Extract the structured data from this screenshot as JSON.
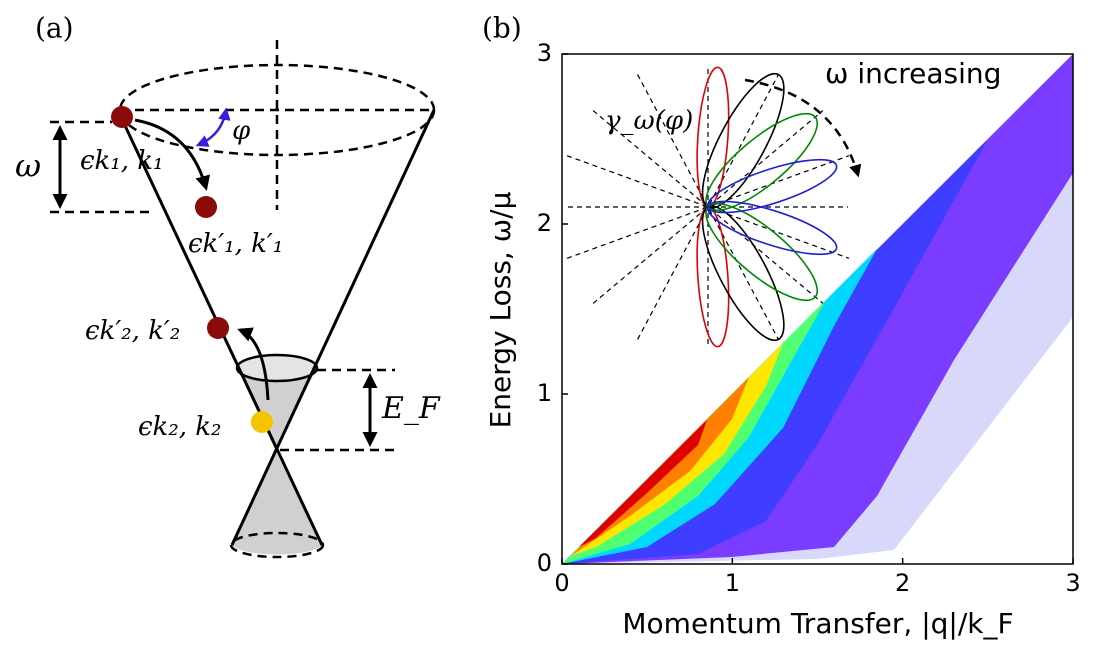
{
  "panel_a": {
    "label": "(a)",
    "omega": "ω",
    "phi": "φ",
    "e_k1": "ϵk₁, k₁",
    "e_k1p": "ϵk′₁, k′₁",
    "e_k2p": "ϵk′₂, k′₂",
    "e_k2": "ϵk₂, k₂",
    "fermi_energy": "E_F"
  },
  "chart_data": {
    "type": "contour",
    "panel_label": "(b)",
    "x_label": "Momentum Transfer, |q|/k_F",
    "y_label": "Energy Loss, ω/μ",
    "annotations": [
      "ω increasing",
      "γ_ω(φ)"
    ],
    "xlim": [
      0,
      3
    ],
    "ylim": [
      0,
      3
    ],
    "xticks": [
      0,
      1,
      2,
      3
    ],
    "yticks": [
      0,
      1,
      2,
      3
    ]
  }
}
